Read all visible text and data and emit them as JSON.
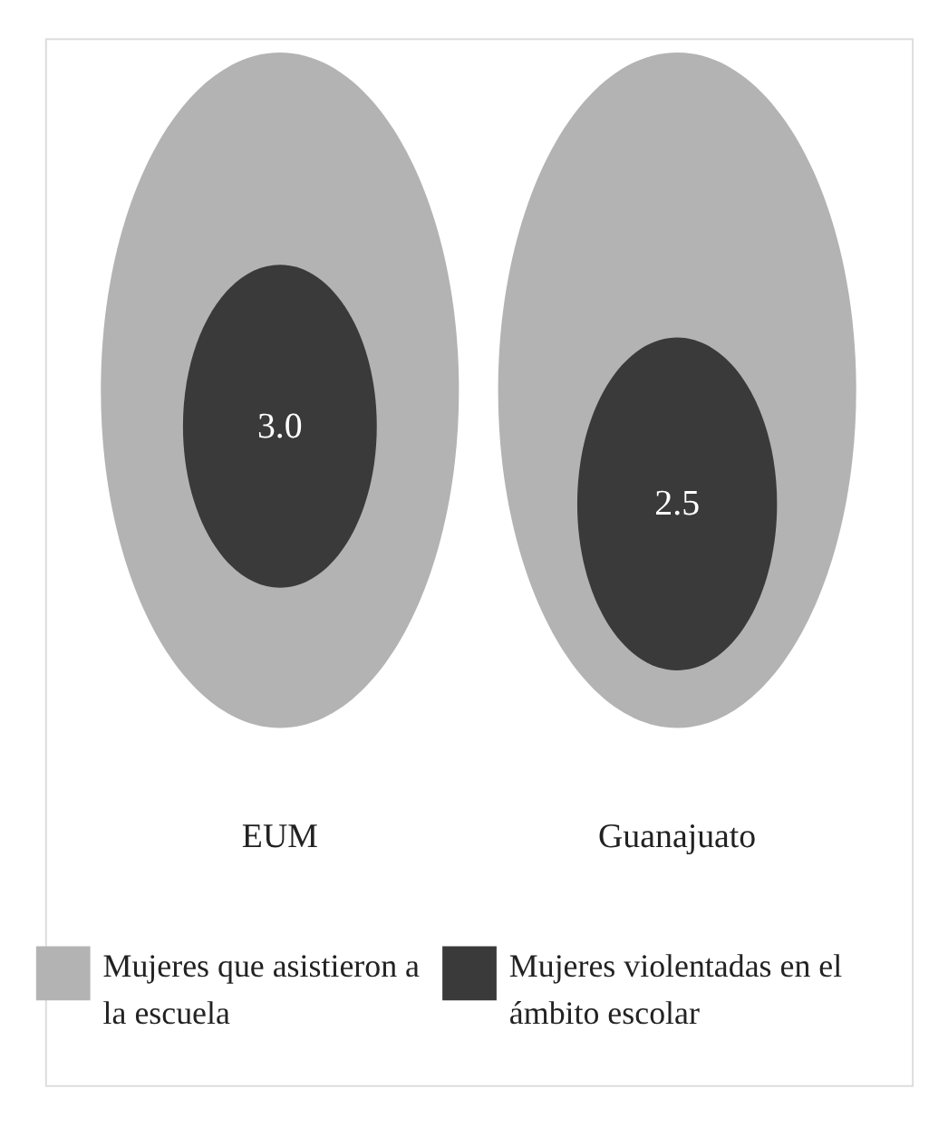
{
  "chart_data": {
    "type": "other",
    "categories": [
      "EUM",
      "Guanajuato"
    ],
    "series": [
      {
        "name": "Mujeres que asistieron a la escuela",
        "color": "#b3b3b3",
        "values": [
          null,
          null
        ]
      },
      {
        "name": "Mujeres violentadas en el ámbito escolar",
        "color": "#3a3a3a",
        "values": [
          3.0,
          2.5
        ],
        "value_labels": [
          "3.0",
          "2.5"
        ]
      }
    ],
    "legend": "bottom"
  }
}
